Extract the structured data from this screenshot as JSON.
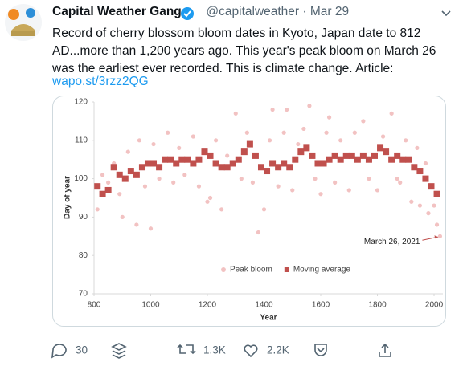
{
  "tweet": {
    "author_name": "Capital Weather Gang",
    "handle": "@capitalweather",
    "date": "Mar 29",
    "text": "Record of cherry blossom bloom dates in Kyoto, Japan date to 812 AD...more than 1,200 years ago. This year's peak bloom on March 26 was the earliest ever recorded. This is climate change. Article:",
    "link": "wapo.st/3rzz2QG"
  },
  "chart_data": {
    "type": "scatter",
    "xlabel": "Year",
    "ylabel": "Day of year",
    "xlim": [
      800,
      2030
    ],
    "xticks": [
      800,
      1000,
      1200,
      1400,
      1600,
      1800,
      2000
    ],
    "ylim": [
      70,
      120
    ],
    "yticks": [
      70,
      80,
      90,
      100,
      110,
      120
    ],
    "legend": "bottom",
    "series": [
      {
        "name": "Peak bloom",
        "color": "#f2c2c2",
        "marker": "circle",
        "x": [
          812,
          830,
          850,
          870,
          890,
          900,
          920,
          950,
          960,
          980,
          1000,
          1010,
          1030,
          1060,
          1080,
          1100,
          1120,
          1150,
          1170,
          1200,
          1210,
          1230,
          1250,
          1270,
          1300,
          1320,
          1340,
          1360,
          1380,
          1400,
          1420,
          1430,
          1450,
          1470,
          1480,
          1500,
          1520,
          1540,
          1560,
          1580,
          1600,
          1620,
          1630,
          1650,
          1670,
          1700,
          1720,
          1750,
          1770,
          1800,
          1820,
          1850,
          1870,
          1880,
          1900,
          1920,
          1940,
          1950,
          1970,
          1980,
          2000,
          2010,
          2021
        ],
        "values": [
          92,
          101,
          99,
          104,
          96,
          90,
          107,
          88,
          110,
          98,
          87,
          109,
          100,
          112,
          99,
          108,
          101,
          111,
          98,
          94,
          95,
          110,
          92,
          106,
          117,
          100,
          112,
          99,
          86,
          92,
          110,
          118,
          98,
          112,
          118,
          97,
          109,
          113,
          119,
          100,
          96,
          112,
          116,
          99,
          110,
          97,
          112,
          115,
          100,
          97,
          111,
          117,
          100,
          99,
          110,
          94,
          108,
          93,
          104,
          91,
          93,
          88,
          85
        ]
      },
      {
        "name": "Moving average",
        "color": "#c0504d",
        "marker": "square",
        "x": [
          812,
          830,
          850,
          870,
          890,
          910,
          930,
          950,
          970,
          990,
          1010,
          1030,
          1050,
          1070,
          1090,
          1110,
          1130,
          1150,
          1170,
          1190,
          1210,
          1230,
          1250,
          1270,
          1290,
          1310,
          1330,
          1350,
          1370,
          1390,
          1410,
          1430,
          1450,
          1470,
          1490,
          1510,
          1530,
          1550,
          1570,
          1590,
          1610,
          1630,
          1650,
          1670,
          1690,
          1710,
          1730,
          1750,
          1770,
          1790,
          1810,
          1830,
          1850,
          1870,
          1890,
          1910,
          1930,
          1950,
          1970,
          1990,
          2010
        ],
        "values": [
          98,
          96,
          97,
          103,
          101,
          100,
          102,
          101,
          103,
          104,
          104,
          103,
          105,
          105,
          104,
          105,
          105,
          104,
          105,
          107,
          106,
          104,
          103,
          103,
          104,
          105,
          107,
          109,
          106,
          103,
          102,
          104,
          103,
          104,
          103,
          105,
          107,
          108,
          106,
          104,
          104,
          105,
          106,
          105,
          106,
          106,
          105,
          106,
          105,
          106,
          108,
          107,
          105,
          106,
          105,
          105,
          103,
          102,
          100,
          98,
          96
        ]
      }
    ],
    "annotation": {
      "text": "March 26, 2021",
      "x": 2021,
      "y": 85
    }
  },
  "actions": {
    "replies": "30",
    "retweets": "1.3K",
    "likes": "2.2K"
  }
}
